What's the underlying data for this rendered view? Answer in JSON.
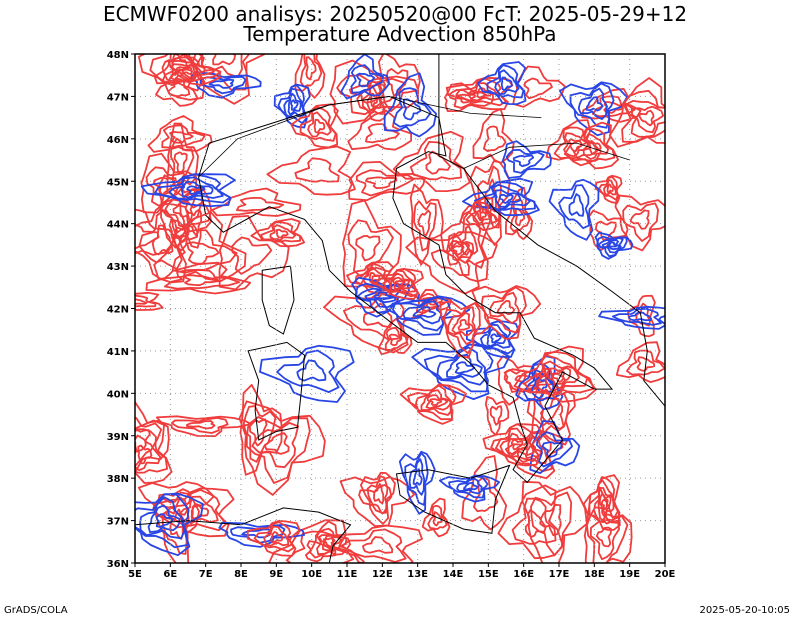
{
  "header": {
    "title_line1": "ECMWF0200 analisys: 20250520@00 FcT: 2025-05-29+12",
    "title_line2": "Temperature Advection 850hPa"
  },
  "footer": {
    "left": "GrADS/COLA",
    "right": "2025-05-20-10:05"
  },
  "map": {
    "lon_range": [
      5,
      20
    ],
    "lat_range": [
      36,
      48
    ],
    "lon_labels": [
      "5E",
      "6E",
      "7E",
      "8E",
      "9E",
      "10E",
      "11E",
      "12E",
      "13E",
      "14E",
      "15E",
      "16E",
      "17E",
      "18E",
      "19E",
      "20E"
    ],
    "lat_labels": [
      "36N",
      "37N",
      "38N",
      "39N",
      "40N",
      "41N",
      "42N",
      "43N",
      "44N",
      "45N",
      "46N",
      "47N",
      "48N"
    ],
    "colors": {
      "positive_contour": "#f03c3c",
      "negative_contour": "#2846e6",
      "coastline": "#000000",
      "grid": "#9a9a9a"
    }
  }
}
